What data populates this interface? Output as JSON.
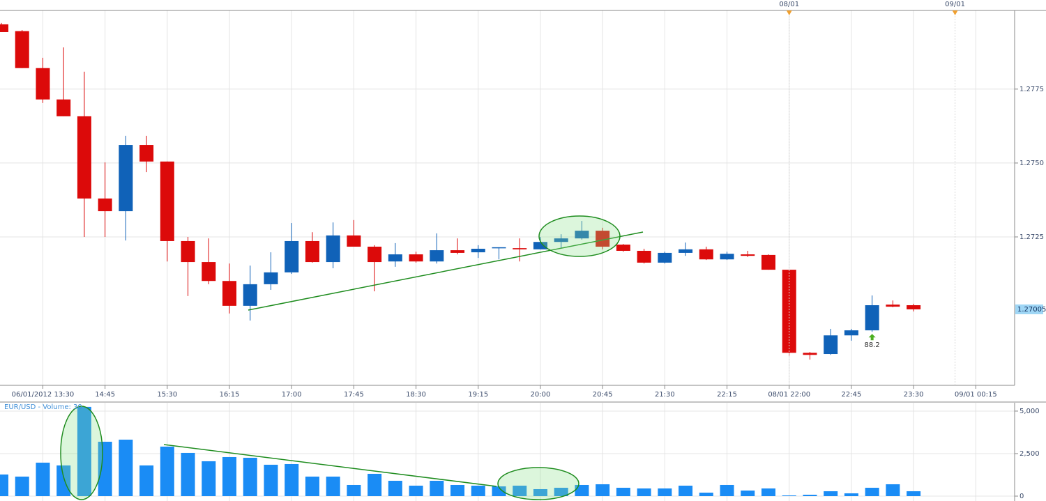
{
  "chart_data": [
    {
      "type": "candlestick",
      "categories": [
        null,
        null,
        "06/01/2012 13:30",
        null,
        null,
        "14:45",
        null,
        null,
        "15:30",
        null,
        null,
        "16:15",
        null,
        null,
        "17:00",
        null,
        null,
        "17:45",
        null,
        null,
        "18:30",
        null,
        null,
        "19:15",
        null,
        null,
        "20:00",
        null,
        null,
        "20:45",
        null,
        null,
        "21:30",
        null,
        null,
        "22:15",
        null,
        null,
        "08/01 22:00",
        null,
        null,
        "22:45",
        null,
        null,
        "23:30",
        null,
        null,
        "09/01 00:15"
      ],
      "open": [
        1.27969,
        1.27946,
        1.27821,
        1.27715,
        1.27658,
        1.2738,
        1.27337,
        1.27561,
        1.27505,
        1.27236,
        1.27165,
        1.27101,
        1.27017,
        1.2709,
        1.2713,
        1.27236,
        1.27165,
        1.27255,
        1.27217,
        1.27167,
        1.27191,
        1.27167,
        1.27205,
        1.27198,
        1.27212,
        1.27212,
        1.27208,
        1.27233,
        1.27245,
        1.27271,
        1.27224,
        1.27203,
        1.27163,
        1.27196,
        1.27208,
        1.27174,
        1.27191,
        1.27189,
        1.27139,
        1.26858,
        1.26854,
        1.26917,
        1.26934,
        1.27021,
        1.27019,
        null,
        null,
        null
      ],
      "high": [
        1.27974,
        1.2795,
        1.27856,
        1.27891,
        1.27809,
        1.27502,
        1.27592,
        1.27592,
        1.27505,
        1.2725,
        1.27245,
        1.2716,
        1.27153,
        1.27198,
        1.27297,
        1.27266,
        1.27299,
        1.27307,
        1.27222,
        1.27229,
        1.272,
        1.27262,
        1.27245,
        1.27222,
        1.27215,
        1.27245,
        1.2725,
        1.27259,
        1.27304,
        1.27281,
        1.27226,
        1.2721,
        1.272,
        1.27231,
        1.27217,
        1.272,
        1.27203,
        1.27191,
        1.27139,
        1.26861,
        1.26939,
        1.26939,
        1.27052,
        1.27035,
        1.27024,
        null,
        null,
        null
      ],
      "low": [
        1.27943,
        1.27821,
        1.27703,
        1.27658,
        1.2725,
        1.2725,
        1.27238,
        1.27469,
        1.27167,
        1.2705,
        1.2709,
        1.26991,
        1.26967,
        1.27071,
        1.27125,
        1.27163,
        1.27144,
        1.27217,
        1.27066,
        1.27149,
        1.27163,
        1.2716,
        1.27191,
        1.27179,
        1.27174,
        1.27167,
        1.27208,
        1.27212,
        1.27241,
        1.27208,
        1.272,
        1.2716,
        1.2716,
        1.27186,
        1.27172,
        1.27172,
        1.27182,
        1.27139,
        1.26849,
        1.26835,
        1.26851,
        1.26899,
        1.26929,
        1.27012,
        1.26998,
        null,
        null,
        null
      ],
      "close": [
        1.27943,
        1.27821,
        1.27715,
        1.27658,
        1.2738,
        1.27337,
        1.27561,
        1.27505,
        1.27236,
        1.27165,
        1.27101,
        1.27017,
        1.2709,
        1.2713,
        1.27236,
        1.27165,
        1.27255,
        1.27217,
        1.27165,
        1.27191,
        1.27167,
        1.27205,
        1.27196,
        1.2721,
        1.27215,
        1.27208,
        1.27233,
        1.27245,
        1.27271,
        1.27217,
        1.27203,
        1.27163,
        1.27196,
        1.27208,
        1.27174,
        1.27193,
        1.27186,
        1.27139,
        1.26858,
        1.26851,
        1.26917,
        1.26934,
        1.27019,
        1.27014,
        1.27005,
        null,
        null,
        null
      ],
      "up_color": "#1062b8",
      "down_color": "#dc0a0a",
      "ylim": [
        1.26748,
        1.28016
      ],
      "yticks": [
        1.2775,
        {
          "value": 1.275,
          "label": "1.2750"
        },
        1.2725
      ],
      "last_price": 1.27005,
      "grid": true,
      "markers": [
        {
          "category": 38,
          "label": "08/01"
        },
        {
          "category": 46,
          "label": "09/01"
        }
      ],
      "annotations": [
        {
          "category": 42,
          "label": "88.2"
        }
      ]
    },
    {
      "type": "bar",
      "title": "EUR/USD - Volume: 30",
      "values": [
        1271,
        1148,
        1968,
        1804,
        5248,
        3198,
        3321,
        1804,
        2911,
        2542,
        2050,
        2296,
        2255,
        1845,
        1886,
        1148,
        1148,
        656,
        1312,
        902,
        615,
        902,
        656,
        615,
        574,
        615,
        410,
        492,
        656,
        697,
        492,
        451,
        451,
        615,
        205,
        656,
        328,
        451,
        41,
        82,
        287,
        164,
        492,
        697,
        287,
        null,
        null,
        null
      ],
      "color": "#1a8cf5",
      "ylim": [
        -287,
        5490
      ],
      "yticks": [
        {
          "value": 5000,
          "label": "5,000"
        },
        {
          "value": 2500,
          "label": "2,500"
        },
        0
      ],
      "grid": true
    }
  ]
}
